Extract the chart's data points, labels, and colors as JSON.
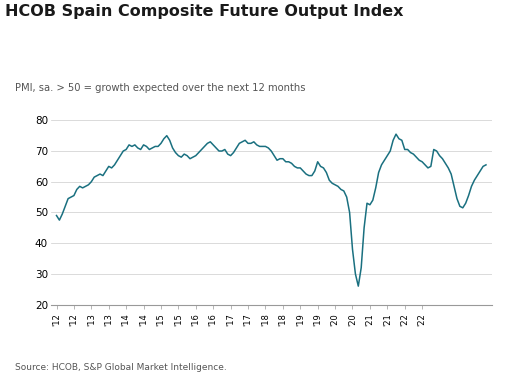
{
  "title": "HCOB Spain Composite Future Output Index",
  "subtitle": "PMI, sa. > 50 = growth expected over the next 12 months",
  "source": "Source: HCOB, S&P Global Market Intelligence.",
  "line_color": "#1a7080",
  "background_color": "#ffffff",
  "ylim": [
    20,
    80
  ],
  "yticks": [
    20,
    30,
    40,
    50,
    60,
    70,
    80
  ],
  "monthly_values": [
    49.0,
    47.5,
    49.5,
    52.0,
    54.5,
    55.0,
    55.5,
    57.5,
    58.5,
    58.0,
    58.5,
    59.0,
    60.0,
    61.5,
    62.0,
    62.5,
    62.0,
    63.5,
    65.0,
    64.5,
    65.5,
    67.0,
    68.5,
    70.0,
    70.5,
    72.0,
    71.5,
    72.0,
    71.0,
    70.5,
    72.0,
    71.5,
    70.5,
    71.0,
    71.5,
    71.5,
    72.5,
    74.0,
    75.0,
    73.5,
    71.0,
    69.5,
    68.5,
    68.0,
    69.0,
    68.5,
    67.5,
    68.0,
    68.5,
    69.5,
    70.5,
    71.5,
    72.5,
    73.0,
    72.0,
    71.0,
    70.0,
    70.0,
    70.5,
    69.0,
    68.5,
    69.5,
    71.0,
    72.5,
    73.0,
    73.5,
    72.5,
    72.5,
    73.0,
    72.0,
    71.5,
    71.5,
    71.5,
    71.0,
    70.0,
    68.5,
    67.0,
    67.5,
    67.5,
    66.5,
    66.5,
    66.0,
    65.0,
    64.5,
    64.5,
    63.5,
    62.5,
    62.0,
    62.0,
    63.5,
    66.5,
    65.0,
    64.5,
    63.0,
    60.5,
    59.5,
    59.0,
    58.5,
    57.5,
    57.0,
    55.0,
    50.0,
    38.0,
    30.0,
    26.0,
    32.0,
    45.0,
    53.0,
    52.5,
    54.0,
    58.0,
    63.0,
    65.5,
    67.0,
    68.5,
    70.0,
    73.5,
    75.5,
    74.0,
    73.5,
    70.5,
    70.5,
    69.5,
    69.0,
    68.0,
    67.0,
    66.5,
    65.5,
    64.5,
    65.0,
    70.5,
    70.0,
    68.5,
    67.5,
    66.0,
    64.5,
    62.5,
    58.5,
    54.5,
    52.0,
    51.5,
    53.0,
    55.5,
    58.5,
    60.5,
    62.0,
    63.5,
    65.0,
    65.5
  ]
}
